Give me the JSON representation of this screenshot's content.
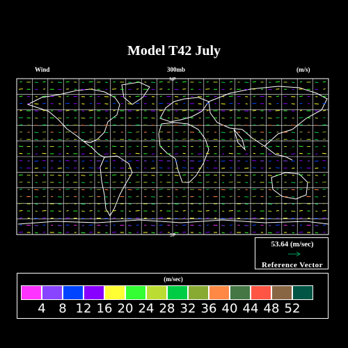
{
  "title": "Model T42 July",
  "subtitle": {
    "left": "Wind",
    "center": "300mb",
    "right": "(m/s)"
  },
  "map_labels": {
    "top": "NP",
    "bottom": "SP"
  },
  "reference": {
    "value": "53.64  (m/sec)",
    "label": "Reference Vector",
    "arrow_color": "#00a060"
  },
  "legend": {
    "unit": "(m/sec)",
    "ticks": [
      "4",
      "8",
      "12",
      "16",
      "20",
      "24",
      "28",
      "32",
      "36",
      "40",
      "44",
      "48",
      "52"
    ],
    "colors": [
      "#ff33ff",
      "#8844ff",
      "#0044ff",
      "#8800ff",
      "#ffff33",
      "#33ff33",
      "#bbdd33",
      "#00cc44",
      "#88aa33",
      "#ff8844",
      "#447744",
      "#ff5544",
      "#886644",
      "#005544"
    ]
  },
  "colors": {
    "background": "#000000",
    "grid": "#ffffff",
    "coast": "#ffffff"
  }
}
